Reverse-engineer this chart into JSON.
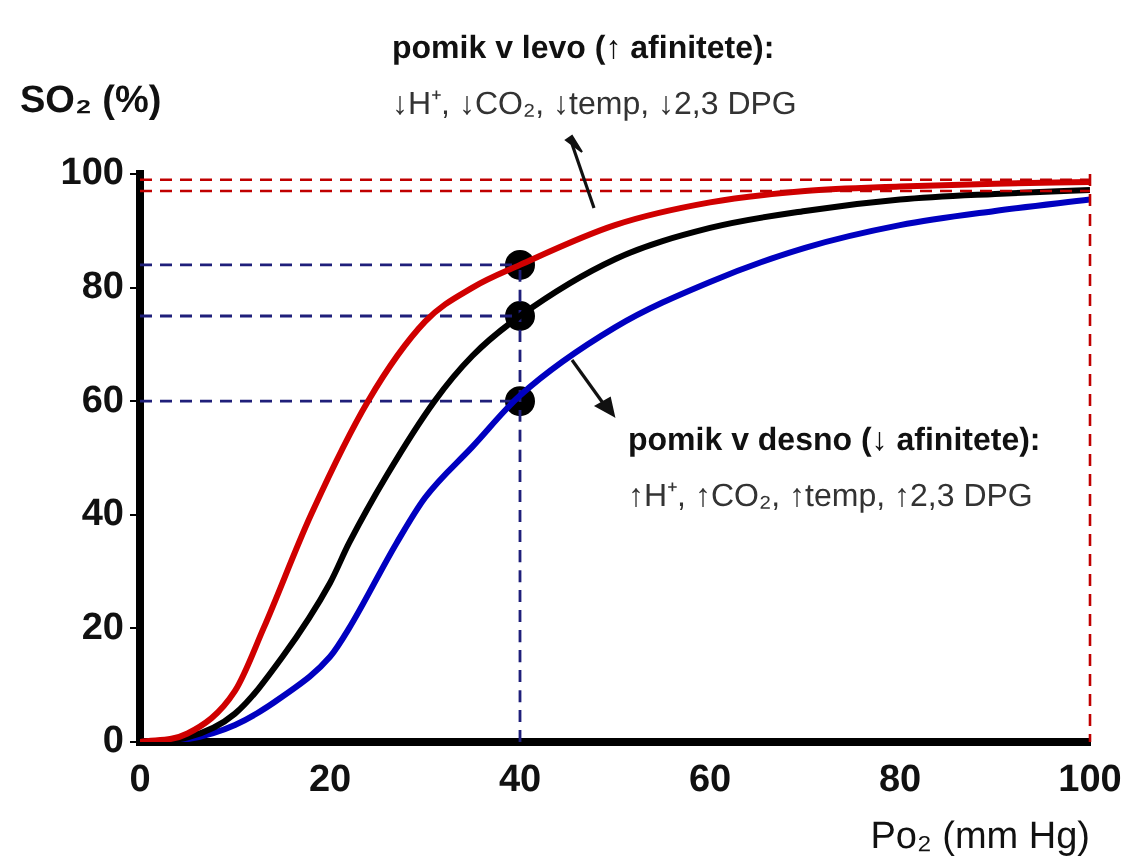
{
  "chart_data": {
    "type": "line",
    "xlabel": "Po₂ (mm Hg)",
    "ylabel": "SO₂ (%)",
    "xlim": [
      0,
      100
    ],
    "xticks": [
      0,
      20,
      40,
      60,
      80,
      100
    ],
    "ylim": [
      0,
      100
    ],
    "yticks": [
      0,
      20,
      40,
      60,
      80,
      100
    ],
    "grid": false,
    "legend": false,
    "marker": "none",
    "line_style": "solid",
    "annotations": [
      "pomik v levo (↑ afinitete):",
      "↓H⁺, ↓CO₂, ↓temp, ↓2,3 DPG",
      "pomik v desno (↓ afinitete):",
      "↑H⁺, ↑CO₂, ↑temp, ↑2,3 DPG"
    ],
    "ref_lines": [
      {
        "axis": "y",
        "value": 99,
        "color": "#c00000",
        "line_style": "dashed"
      },
      {
        "axis": "y",
        "value": 97,
        "color": "#c00000",
        "line_style": "dashed"
      },
      {
        "axis": "x",
        "value": 100,
        "color": "#c00000",
        "line_style": "dashed"
      }
    ],
    "series": [
      {
        "color": "#d00000",
        "x": [
          0,
          5,
          10,
          13,
          18,
          24,
          30,
          35,
          40,
          50,
          60,
          70,
          80,
          90,
          100
        ],
        "values": [
          0,
          1.5,
          9,
          20,
          40,
          60,
          74,
          80,
          84,
          91,
          95,
          97,
          97.8,
          98.3,
          98.6
        ]
      },
      {
        "color": "#000000",
        "x": [
          0,
          5,
          10,
          15,
          20,
          22,
          26,
          31,
          35,
          40,
          50,
          60,
          70,
          80,
          90,
          100
        ],
        "values": [
          0,
          0.8,
          5,
          15,
          28,
          35,
          47,
          60,
          68,
          75,
          85,
          90.5,
          93.5,
          95.5,
          96.5,
          97.2
        ]
      },
      {
        "color": "#0000c0",
        "x": [
          0,
          5,
          10,
          15,
          20,
          22,
          27,
          30,
          35,
          40,
          50,
          60,
          70,
          80,
          90,
          100
        ],
        "values": [
          0,
          0.5,
          3,
          8,
          15,
          20,
          35,
          43,
          52,
          61,
          73,
          81,
          87,
          91,
          93.5,
          95.5
        ]
      },
      {
        "color": "#1f1f7a",
        "line_style": "dashed",
        "x": [
          0,
          40
        ],
        "values": [
          84,
          84
        ]
      },
      {
        "color": "#1f1f7a",
        "line_style": "dashed",
        "x": [
          0,
          40
        ],
        "values": [
          75,
          75
        ]
      },
      {
        "color": "#1f1f7a",
        "line_style": "dashed",
        "x": [
          0,
          40
        ],
        "values": [
          60,
          60
        ]
      },
      {
        "color": "#1f1f7a",
        "line_style": "dashed",
        "x": [
          40,
          40
        ],
        "values": [
          0,
          84
        ]
      },
      {
        "type": "scatter",
        "color": "#000000",
        "marker": "circle",
        "x": [
          40,
          40,
          40
        ],
        "values": [
          84,
          75,
          60
        ]
      }
    ]
  }
}
